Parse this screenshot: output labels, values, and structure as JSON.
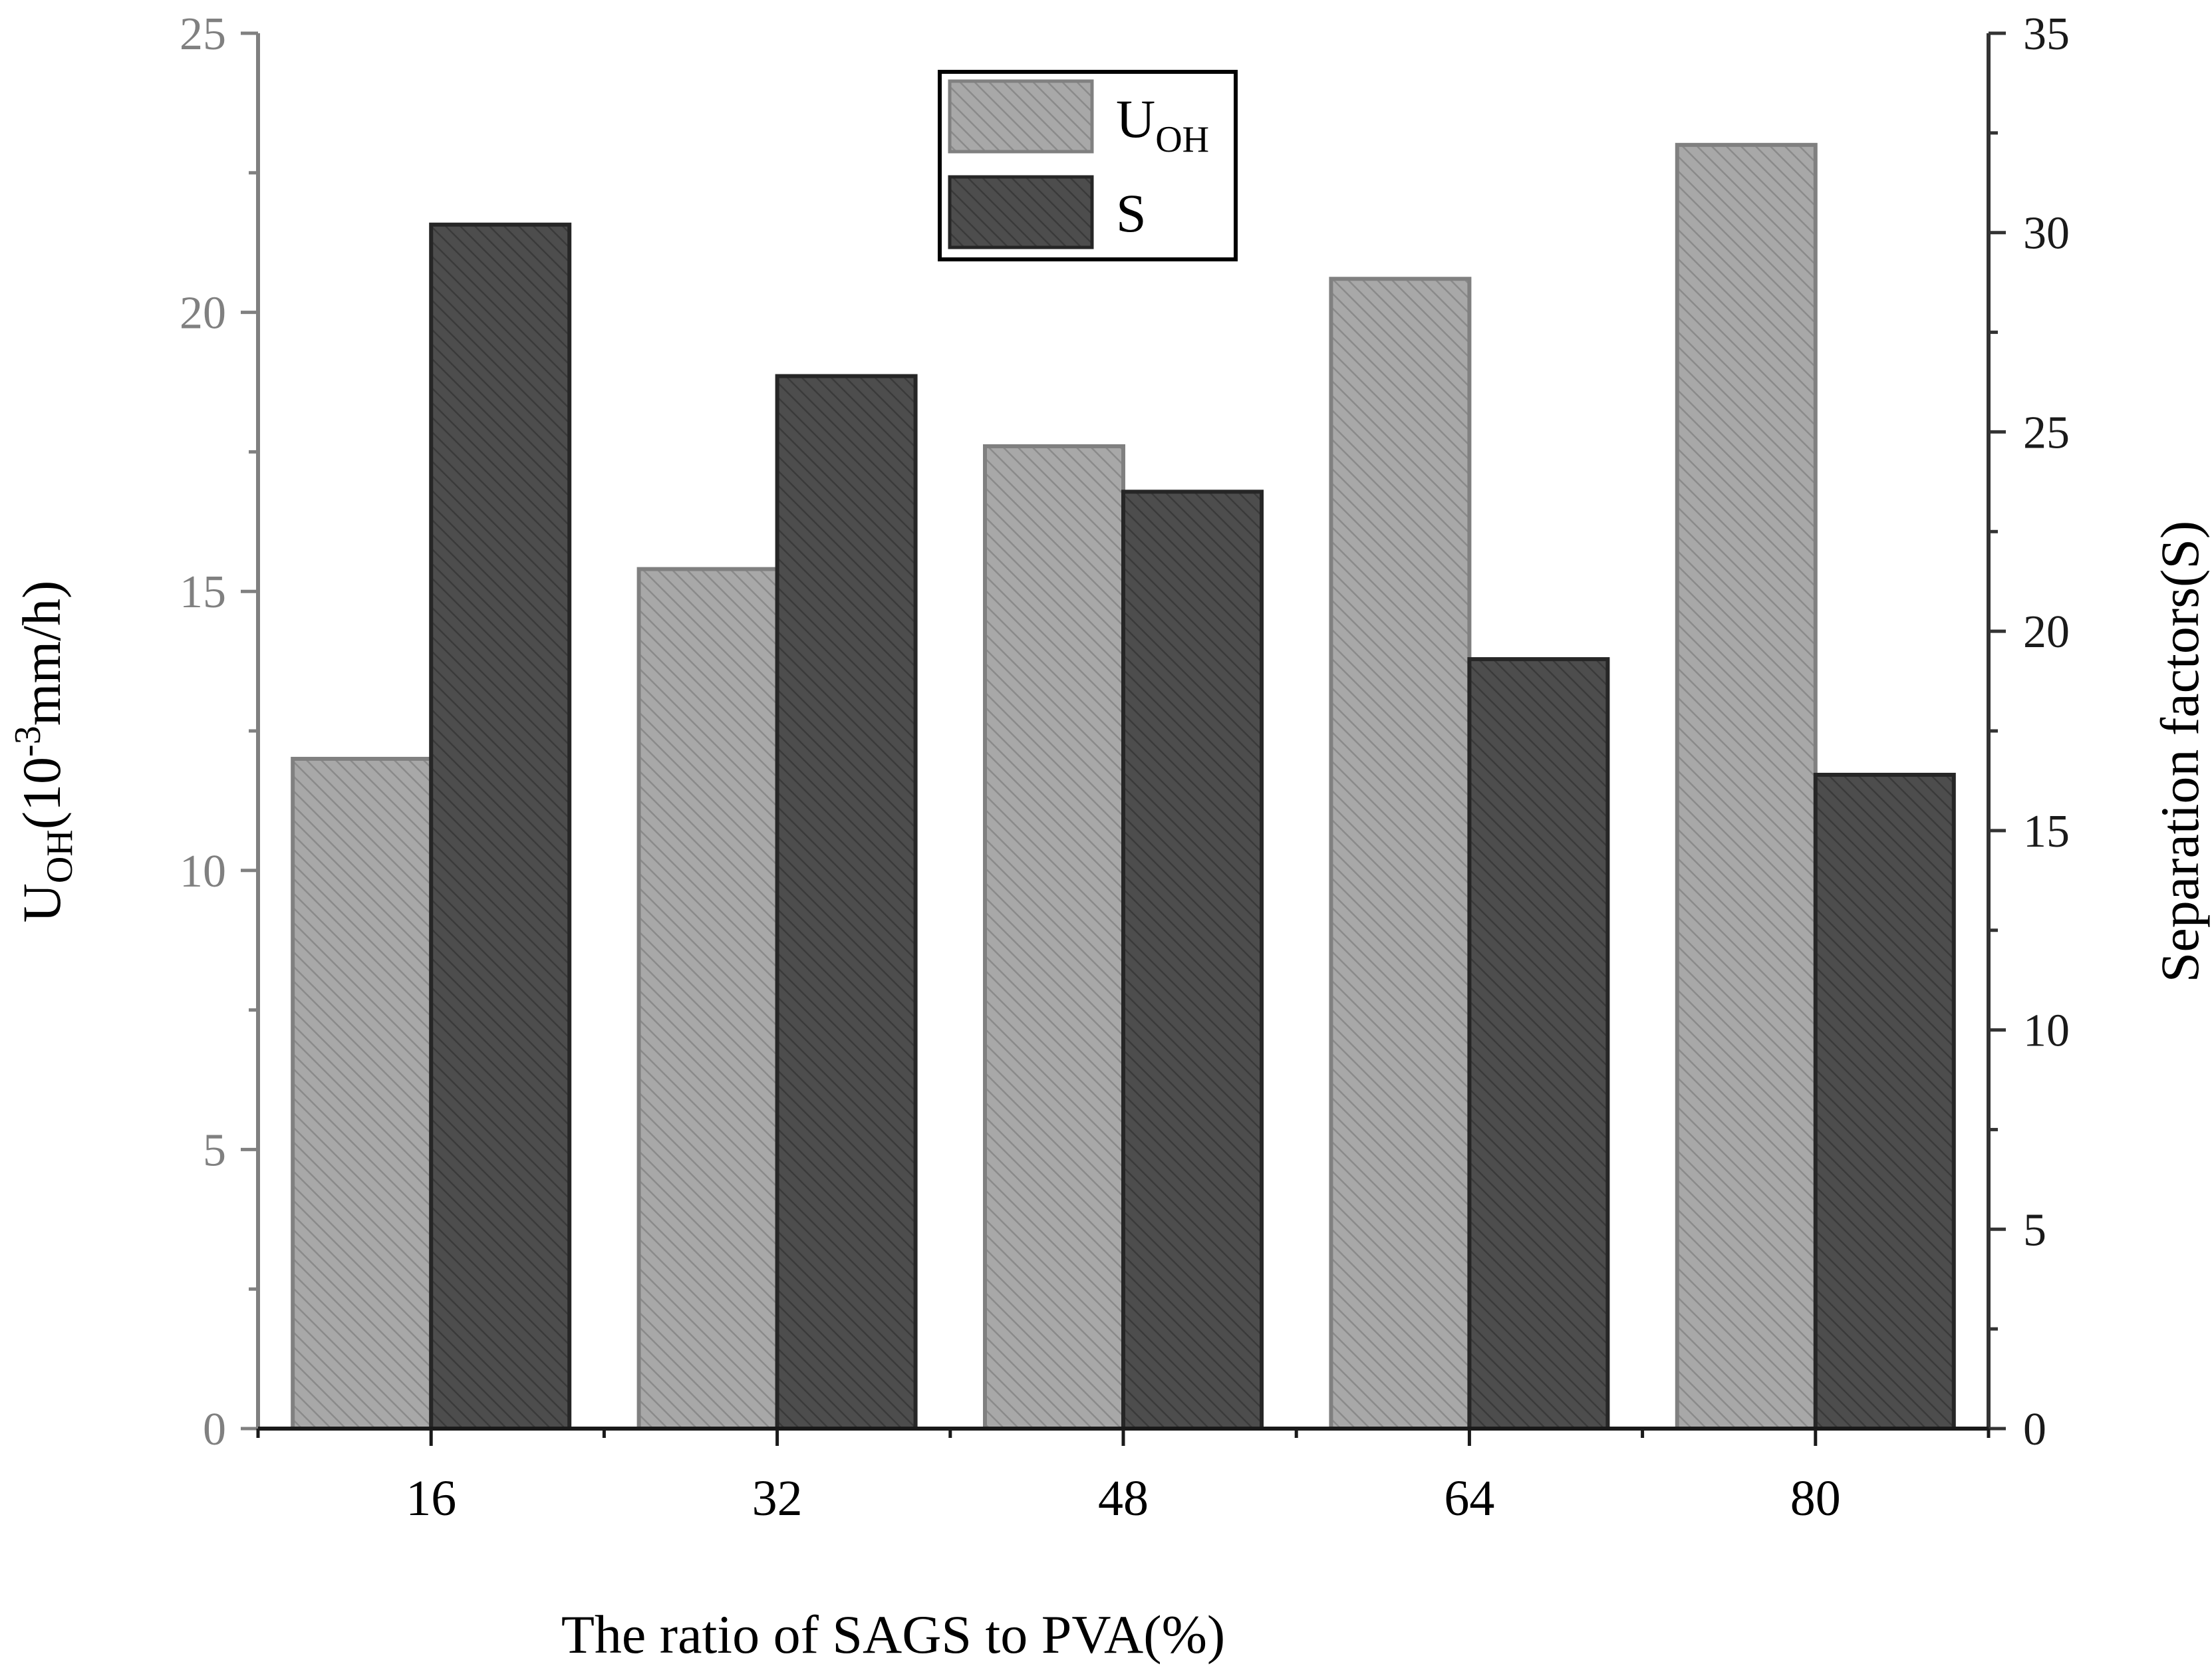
{
  "chart_data": {
    "type": "bar",
    "xlabel": "The ratio of SAGS to PVA(%)",
    "ylabel_left": {
      "main": "U",
      "sub": "OH",
      "rest": "(10",
      "sup": "-3",
      "tail": "mm/h)"
    },
    "ylabel_right": "Separation factors(S)",
    "categories": [
      "16",
      "32",
      "48",
      "64",
      "80"
    ],
    "y_left": {
      "min": 0,
      "max": 25,
      "ticks": [
        "0",
        "5",
        "10",
        "15",
        "20",
        "25"
      ],
      "minor_step": 2.5
    },
    "y_right": {
      "min": 0,
      "max": 35,
      "ticks": [
        "0",
        "5",
        "10",
        "15",
        "20",
        "25",
        "30",
        "35"
      ],
      "minor_step": 2.5
    },
    "series": [
      {
        "name": "U",
        "name_sub": "OH",
        "axis": "left",
        "values": [
          12.0,
          15.4,
          17.6,
          20.6,
          23.0
        ],
        "fill": "#a8a8a8",
        "stroke": "#808080",
        "hatch": "#8a8a8a"
      },
      {
        "name": "S",
        "axis": "right",
        "values": [
          30.2,
          26.4,
          23.5,
          19.3,
          16.4
        ],
        "fill": "#4d4d4d",
        "stroke": "#262626",
        "hatch": "#3a3a3a"
      }
    ],
    "legend_position": "top-center",
    "grid": false,
    "colors": {
      "left_axis": "#808080",
      "right_axis": "#333333"
    }
  }
}
